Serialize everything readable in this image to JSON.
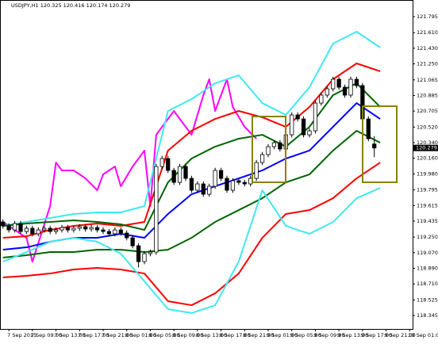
{
  "chart_data": {
    "type": "candlestick",
    "title": "USDJPY,H1  120.325 120.416 120.174 120.279",
    "last_price": 120.279,
    "ylim": [
      118.19,
      121.987
    ],
    "xlim": [
      -0.5,
      69.5
    ],
    "yticks": [
      121.795,
      {
        "value": 121.61,
        "label": "121.610"
      },
      {
        "value": 121.43,
        "label": "121.430"
      },
      {
        "value": 121.25,
        "label": "121.250"
      },
      121.065,
      120.885,
      120.705,
      {
        "value": 120.52,
        "label": "120.520"
      },
      {
        "value": 120.34,
        "label": "120.340"
      },
      {
        "value": 120.16,
        "label": "120.160"
      },
      {
        "value": 119.98,
        "label": "119.980"
      },
      119.795,
      119.615,
      119.435,
      {
        "value": 119.25,
        "label": "119.250"
      },
      {
        "value": 119.07,
        "label": "119.070"
      },
      {
        "value": 118.89,
        "label": "118.890"
      },
      {
        "value": 118.71,
        "label": "118.710"
      },
      118.525,
      118.345
    ],
    "xticks": [
      {
        "value": 1,
        "label": "7 Sep 2015"
      },
      {
        "value": 5,
        "label": "7 Sep 09:00"
      },
      {
        "value": 9,
        "label": "7 Sep 13:00"
      },
      {
        "value": 13,
        "label": "7 Sep 17:00"
      },
      {
        "value": 17,
        "label": "7 Sep 21:00"
      },
      {
        "value": 21,
        "label": "8 Sep 01:00"
      },
      {
        "value": 25,
        "label": "8 Sep 05:00"
      },
      {
        "value": 29,
        "label": "8 Sep 09:00"
      },
      {
        "value": 33,
        "label": "8 Sep 13:00"
      },
      {
        "value": 37,
        "label": "8 Sep 17:00"
      },
      {
        "value": 41,
        "label": "8 Sep 21:00"
      },
      {
        "value": 45,
        "label": "9 Sep 01:00"
      },
      {
        "value": 49,
        "label": "9 Sep 05:00"
      },
      {
        "value": 53,
        "label": "9 Sep 09:00"
      },
      {
        "value": 57,
        "label": "9 Sep 13:00"
      },
      {
        "value": 61,
        "label": "9 Sep 17:00"
      },
      {
        "value": 65,
        "label": "9 Sep 21:00"
      },
      {
        "value": 69,
        "label": "10 Sep 01:00"
      }
    ],
    "open": [
      119.425,
      119.379,
      119.333,
      119.407,
      119.315,
      119.352,
      119.288,
      119.333,
      119.352,
      119.315,
      119.333,
      119.361,
      119.333,
      119.352,
      119.37,
      119.343,
      119.361,
      119.333,
      119.315,
      119.288,
      119.333,
      119.297,
      119.242,
      119.15,
      118.967,
      119.059,
      119.077,
      120.065,
      120.157,
      120.02,
      119.882,
      120.065,
      119.928,
      119.791,
      119.864,
      119.745,
      119.837,
      120.02,
      119.928,
      119.791,
      119.901,
      119.882,
      119.864,
      119.928,
      120.111,
      120.203,
      120.294,
      120.34,
      120.267,
      120.431,
      120.66,
      120.614,
      120.431,
      120.477,
      120.797,
      120.889,
      120.962,
      121.072,
      120.98,
      120.889,
      121.072,
      120.999,
      120.614,
      120.325
    ],
    "high": [
      119.455,
      119.409,
      119.437,
      119.437,
      119.382,
      119.382,
      119.363,
      119.382,
      119.382,
      119.363,
      119.391,
      119.391,
      119.382,
      119.4,
      119.4,
      119.391,
      119.391,
      119.363,
      119.345,
      119.363,
      119.363,
      119.327,
      119.272,
      119.18,
      119.089,
      119.107,
      120.095,
      120.187,
      120.187,
      120.05,
      120.095,
      120.095,
      119.958,
      119.894,
      119.894,
      119.867,
      120.05,
      120.05,
      119.958,
      119.931,
      119.931,
      119.912,
      119.958,
      120.141,
      120.233,
      120.324,
      120.37,
      120.37,
      120.461,
      120.69,
      120.69,
      120.644,
      120.507,
      120.827,
      120.919,
      120.992,
      121.102,
      121.102,
      121.01,
      121.102,
      121.102,
      121.029,
      120.644,
      120.416
    ],
    "low": [
      119.349,
      119.303,
      119.303,
      119.285,
      119.285,
      119.258,
      119.258,
      119.303,
      119.285,
      119.285,
      119.303,
      119.303,
      119.303,
      119.322,
      119.313,
      119.313,
      119.303,
      119.285,
      119.258,
      119.258,
      119.267,
      119.212,
      119.12,
      118.9,
      118.937,
      119.029,
      119.047,
      120.035,
      119.99,
      119.852,
      119.852,
      119.898,
      119.761,
      119.761,
      119.715,
      119.715,
      119.807,
      119.898,
      119.761,
      119.761,
      119.852,
      119.834,
      119.834,
      119.898,
      120.081,
      120.173,
      120.264,
      120.237,
      120.237,
      120.401,
      120.584,
      120.401,
      120.401,
      120.447,
      120.767,
      120.859,
      120.932,
      120.95,
      120.859,
      120.859,
      120.969,
      120.584,
      120.356,
      120.174
    ],
    "close": [
      119.379,
      119.333,
      119.407,
      119.315,
      119.352,
      119.288,
      119.333,
      119.352,
      119.315,
      119.333,
      119.361,
      119.333,
      119.352,
      119.37,
      119.343,
      119.361,
      119.333,
      119.315,
      119.288,
      119.333,
      119.297,
      119.242,
      119.15,
      118.967,
      119.059,
      119.077,
      120.065,
      120.157,
      120.02,
      119.882,
      120.065,
      119.928,
      119.791,
      119.864,
      119.745,
      119.837,
      120.02,
      119.928,
      119.791,
      119.901,
      119.882,
      119.864,
      119.928,
      120.111,
      120.203,
      120.294,
      120.34,
      120.267,
      120.431,
      120.66,
      120.614,
      120.431,
      120.477,
      120.797,
      120.889,
      120.962,
      121.072,
      120.98,
      120.889,
      121.072,
      120.999,
      120.614,
      120.386,
      120.279
    ],
    "series": [
      {
        "color": "#ff00ff",
        "x": [
          0,
          4,
          5,
          8,
          9,
          10,
          12,
          14,
          16,
          17,
          19,
          20,
          22,
          24,
          25,
          26,
          29,
          32,
          34,
          35,
          36,
          38,
          39,
          41,
          43
        ],
        "values": [
          119.425,
          119.242,
          118.967,
          119.608,
          120.111,
          120.02,
          120.02,
          119.928,
          119.791,
          119.974,
          120.065,
          119.837,
          120.065,
          120.249,
          119.608,
          120.431,
          120.706,
          120.431,
          120.889,
          121.072,
          120.706,
          121.072,
          120.752,
          120.523,
          120.386
        ]
      },
      {
        "color": "#40e8f0",
        "x": [
          0,
          4,
          8,
          12,
          16,
          20,
          24,
          28,
          32,
          36,
          40,
          44,
          48,
          52,
          56,
          60,
          64
        ],
        "values": [
          119.379,
          119.425,
          119.471,
          119.517,
          119.535,
          119.535,
          119.608,
          120.706,
          120.843,
          121.026,
          121.118,
          120.797,
          120.66,
          120.98,
          121.484,
          121.621,
          121.438
        ]
      },
      {
        "color": "#ff0000",
        "x": [
          0,
          4,
          8,
          12,
          16,
          20,
          24,
          28,
          32,
          36,
          40,
          44,
          48,
          52,
          56,
          60,
          64
        ],
        "values": [
          119.242,
          119.26,
          119.333,
          119.379,
          119.407,
          119.379,
          119.425,
          120.249,
          120.477,
          120.614,
          120.706,
          120.633,
          120.523,
          120.752,
          121.072,
          121.255,
          121.164
        ]
      },
      {
        "color": "#006400",
        "x": [
          0,
          4,
          8,
          12,
          16,
          20,
          24,
          28,
          32,
          36,
          40,
          44,
          48,
          52,
          56,
          60,
          64
        ],
        "values": [
          119.379,
          119.407,
          119.425,
          119.443,
          119.425,
          119.398,
          119.333,
          119.882,
          120.157,
          120.294,
          120.386,
          120.431,
          120.294,
          120.523,
          120.889,
          121.026,
          120.752
        ]
      },
      {
        "color": "#0000ff",
        "x": [
          0,
          4,
          8,
          12,
          16,
          20,
          24,
          28,
          32,
          36,
          40,
          44,
          48,
          52,
          56,
          60,
          64
        ],
        "values": [
          119.105,
          119.132,
          119.196,
          119.242,
          119.242,
          119.288,
          119.242,
          119.517,
          119.745,
          119.837,
          119.928,
          120.02,
          120.157,
          120.249,
          120.523,
          120.797,
          120.614
        ]
      },
      {
        "color": "#006400",
        "x": [
          0,
          4,
          8,
          12,
          16,
          20,
          24,
          28,
          32,
          36,
          40,
          44,
          48,
          52,
          56,
          60,
          64
        ],
        "values": [
          119.013,
          119.041,
          119.077,
          119.077,
          119.105,
          119.105,
          119.077,
          119.105,
          119.242,
          119.425,
          119.562,
          119.699,
          119.882,
          119.974,
          120.249,
          120.477,
          120.34
        ]
      },
      {
        "color": "#ff0000",
        "x": [
          0,
          4,
          8,
          12,
          16,
          20,
          24,
          28,
          32,
          36,
          40,
          44,
          48,
          52,
          56,
          60,
          64
        ],
        "values": [
          118.785,
          118.803,
          118.83,
          118.876,
          118.894,
          118.876,
          118.83,
          118.51,
          118.464,
          118.601,
          118.83,
          119.242,
          119.517,
          119.562,
          119.699,
          119.928,
          120.111
        ]
      },
      {
        "color": "#40e8f0",
        "x": [
          0,
          4,
          8,
          12,
          16,
          20,
          24,
          28,
          32,
          36,
          40,
          44,
          48,
          52,
          56,
          60,
          64
        ],
        "values": [
          118.967,
          119.077,
          119.196,
          119.242,
          119.196,
          119.059,
          118.739,
          118.419,
          118.373,
          118.464,
          118.967,
          119.791,
          119.379,
          119.288,
          119.425,
          119.699,
          119.818
        ]
      }
    ]
  }
}
